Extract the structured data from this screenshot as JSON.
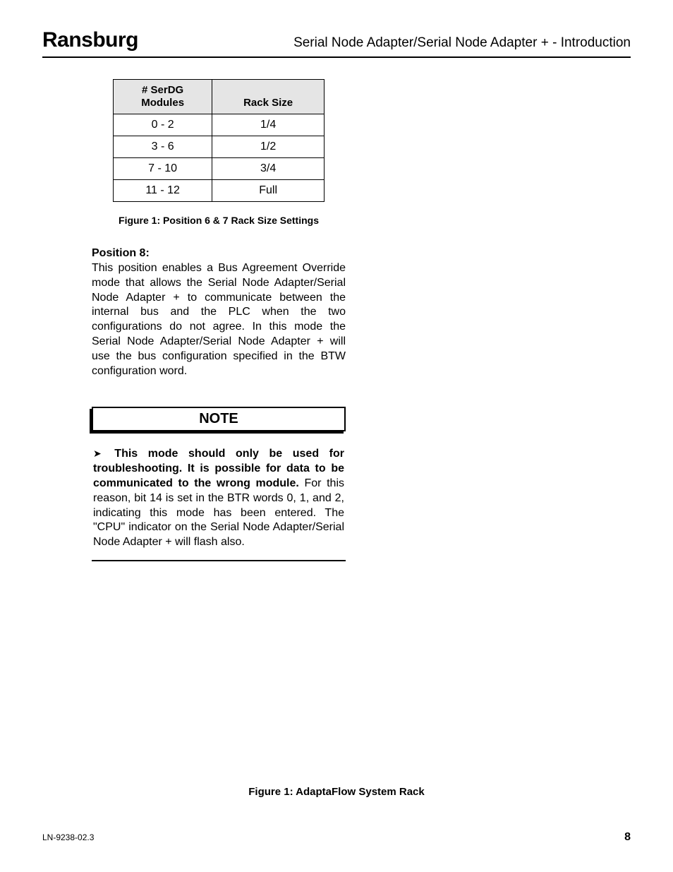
{
  "header": {
    "brand": "Ransburg",
    "title": "Serial Node Adapter/Serial Node Adapter +  - Introduction"
  },
  "table": {
    "col1_header_line1": "# SerDG",
    "col1_header_line2": "Modules",
    "col2_header": "Rack Size",
    "rows": [
      {
        "c1": "0 - 2",
        "c2": "1/4"
      },
      {
        "c1": "3 - 6",
        "c2": "1/2"
      },
      {
        "c1": "7 - 10",
        "c2": "3/4"
      },
      {
        "c1": "11 - 12",
        "c2": "Full"
      }
    ],
    "header_bg": "#e5e5e5",
    "border_color": "#000000",
    "font_size": 16
  },
  "figure1_caption": "Figure 1:  Position 6 & 7 Rack Size Settings",
  "position8": {
    "heading": "Position 8:",
    "body": "This position enables a Bus Agreement Override mode that allows the Serial Node Adapter/Serial Node Adapter + to communicate between the internal bus and the PLC when the two configurations do not agree.  In this mode the Serial Node Adapter/Serial Node Adapter +  will use the bus configuration specified in the BTW configuration word."
  },
  "note": {
    "label": "NOTE",
    "arrow": "➤",
    "bold_lead": " This mode should only be used for troubleshooting.  It is possible for data to be communicated to the wrong module.",
    "rest": "  For this reason, bit 14 is set in the BTR words 0, 1, and 2, indicating this mode has been entered.  The \"CPU\" indicator on the Serial Node Adapter/Serial Node Adapter +  will flash also."
  },
  "figure2_caption": "Figure 1:  AdaptaFlow System Rack",
  "footer": {
    "doc_id": "LN-9238-02.3",
    "page_num": "8"
  }
}
